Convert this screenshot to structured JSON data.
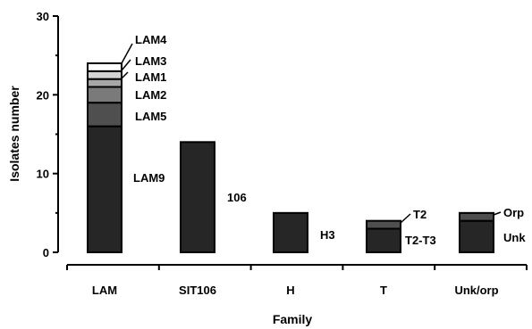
{
  "chart_data": {
    "type": "bar",
    "stacked": true,
    "title": "",
    "xlabel": "Family",
    "ylabel": "Isolates number",
    "ylim": [
      0,
      30
    ],
    "yticks": [
      0,
      10,
      20,
      30
    ],
    "grid": false,
    "legend": "none",
    "categories": [
      "LAM",
      "SIT106",
      "H",
      "T",
      "Unk/orp"
    ],
    "bars": [
      {
        "category": "LAM",
        "segments": [
          {
            "label": "LAM9",
            "value": 16,
            "color": "#262626"
          },
          {
            "label": "LAM5",
            "value": 3,
            "color": "#4f4f4f"
          },
          {
            "label": "LAM2",
            "value": 2,
            "color": "#7a7a7a"
          },
          {
            "label": "LAM1",
            "value": 1,
            "color": "#a6a6a6"
          },
          {
            "label": "LAM3",
            "value": 1,
            "color": "#d4d4d4"
          },
          {
            "label": "LAM4",
            "value": 1,
            "color": "#ffffff"
          }
        ]
      },
      {
        "category": "SIT106",
        "segments": [
          {
            "label": "106",
            "value": 14,
            "color": "#262626"
          }
        ]
      },
      {
        "category": "H",
        "segments": [
          {
            "label": "H3",
            "value": 5,
            "color": "#262626"
          }
        ]
      },
      {
        "category": "T",
        "segments": [
          {
            "label": "T2-T3",
            "value": 3,
            "color": "#262626"
          },
          {
            "label": "T2",
            "value": 1,
            "color": "#4f4f4f"
          }
        ]
      },
      {
        "category": "Unk/orp",
        "segments": [
          {
            "label": "Unk",
            "value": 4,
            "color": "#262626"
          },
          {
            "label": "Orp",
            "value": 1,
            "color": "#4f4f4f"
          }
        ]
      }
    ]
  }
}
